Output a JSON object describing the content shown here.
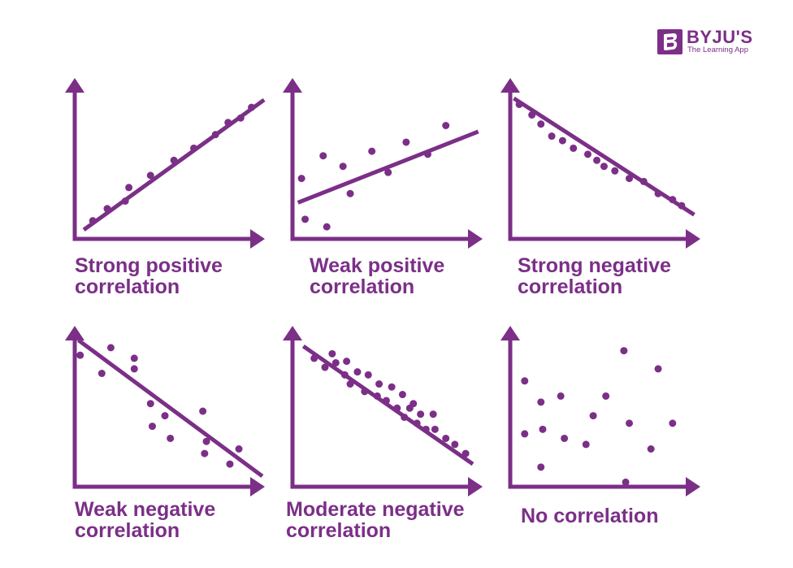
{
  "brand": {
    "name": "BYJU'S",
    "tagline": "The Learning App",
    "color": "#7b2f87"
  },
  "panels": [
    {
      "id": "strong-positive",
      "caption": [
        "Strong positive",
        "correlation"
      ],
      "relationship": "strong positive",
      "points": [
        [
          0.1,
          0.12
        ],
        [
          0.18,
          0.2
        ],
        [
          0.28,
          0.25
        ],
        [
          0.3,
          0.34
        ],
        [
          0.42,
          0.42
        ],
        [
          0.55,
          0.52
        ],
        [
          0.66,
          0.6
        ],
        [
          0.78,
          0.69
        ],
        [
          0.85,
          0.77
        ],
        [
          0.92,
          0.8
        ],
        [
          0.98,
          0.87
        ]
      ],
      "trend": [
        [
          0.05,
          0.06
        ],
        [
          1.05,
          0.92
        ]
      ]
    },
    {
      "id": "weak-positive",
      "caption": [
        "Weak positive",
        "correlation"
      ],
      "relationship": "weak positive",
      "points": [
        [
          0.05,
          0.4
        ],
        [
          0.07,
          0.13
        ],
        [
          0.17,
          0.55
        ],
        [
          0.19,
          0.08
        ],
        [
          0.28,
          0.48
        ],
        [
          0.32,
          0.3
        ],
        [
          0.44,
          0.58
        ],
        [
          0.53,
          0.44
        ],
        [
          0.63,
          0.64
        ],
        [
          0.75,
          0.56
        ],
        [
          0.85,
          0.75
        ]
      ],
      "trend": [
        [
          0.03,
          0.24
        ],
        [
          1.03,
          0.71
        ]
      ]
    },
    {
      "id": "strong-negative",
      "caption": [
        "Strong negative",
        "correlation"
      ],
      "relationship": "strong negative",
      "points": [
        [
          0.05,
          0.89
        ],
        [
          0.12,
          0.82
        ],
        [
          0.17,
          0.76
        ],
        [
          0.23,
          0.68
        ],
        [
          0.29,
          0.65
        ],
        [
          0.35,
          0.6
        ],
        [
          0.43,
          0.56
        ],
        [
          0.48,
          0.52
        ],
        [
          0.52,
          0.48
        ],
        [
          0.58,
          0.45
        ],
        [
          0.66,
          0.4
        ],
        [
          0.74,
          0.38
        ],
        [
          0.82,
          0.3
        ],
        [
          0.9,
          0.26
        ],
        [
          0.95,
          0.22
        ]
      ],
      "trend": [
        [
          0.02,
          0.93
        ],
        [
          1.02,
          0.16
        ]
      ]
    },
    {
      "id": "weak-negative",
      "caption": [
        "Weak negative",
        "correlation"
      ],
      "relationship": "weak negative",
      "points": [
        [
          0.03,
          0.87
        ],
        [
          0.15,
          0.75
        ],
        [
          0.2,
          0.92
        ],
        [
          0.33,
          0.85
        ],
        [
          0.33,
          0.78
        ],
        [
          0.42,
          0.55
        ],
        [
          0.43,
          0.4
        ],
        [
          0.5,
          0.47
        ],
        [
          0.53,
          0.32
        ],
        [
          0.71,
          0.5
        ],
        [
          0.73,
          0.3
        ],
        [
          0.72,
          0.22
        ],
        [
          0.86,
          0.15
        ],
        [
          0.91,
          0.25
        ]
      ],
      "trend": [
        [
          0.02,
          0.97
        ],
        [
          1.04,
          0.07
        ]
      ]
    },
    {
      "id": "moderate-negative",
      "caption": [
        "Moderate negative",
        "correlation"
      ],
      "relationship": "moderate negative",
      "points": [
        [
          0.12,
          0.85
        ],
        [
          0.18,
          0.79
        ],
        [
          0.22,
          0.88
        ],
        [
          0.24,
          0.82
        ],
        [
          0.29,
          0.74
        ],
        [
          0.3,
          0.83
        ],
        [
          0.32,
          0.68
        ],
        [
          0.36,
          0.76
        ],
        [
          0.4,
          0.63
        ],
        [
          0.42,
          0.74
        ],
        [
          0.47,
          0.6
        ],
        [
          0.48,
          0.68
        ],
        [
          0.52,
          0.57
        ],
        [
          0.55,
          0.66
        ],
        [
          0.58,
          0.52
        ],
        [
          0.61,
          0.61
        ],
        [
          0.62,
          0.46
        ],
        [
          0.65,
          0.52
        ],
        [
          0.67,
          0.55
        ],
        [
          0.69,
          0.42
        ],
        [
          0.71,
          0.48
        ],
        [
          0.74,
          0.38
        ],
        [
          0.78,
          0.48
        ],
        [
          0.79,
          0.38
        ],
        [
          0.85,
          0.32
        ],
        [
          0.9,
          0.28
        ],
        [
          0.96,
          0.22
        ]
      ],
      "trend": [
        [
          0.06,
          0.93
        ],
        [
          1.0,
          0.15
        ]
      ]
    },
    {
      "id": "none",
      "caption": [
        "No correlation"
      ],
      "relationship": "none",
      "points": [
        [
          0.08,
          0.7
        ],
        [
          0.08,
          0.35
        ],
        [
          0.17,
          0.56
        ],
        [
          0.17,
          0.13
        ],
        [
          0.18,
          0.38
        ],
        [
          0.28,
          0.6
        ],
        [
          0.3,
          0.32
        ],
        [
          0.42,
          0.28
        ],
        [
          0.46,
          0.47
        ],
        [
          0.53,
          0.6
        ],
        [
          0.63,
          0.9
        ],
        [
          0.66,
          0.42
        ],
        [
          0.78,
          0.25
        ],
        [
          0.82,
          0.78
        ],
        [
          0.9,
          0.42
        ],
        [
          0.64,
          0.03
        ]
      ],
      "trend": null
    }
  ]
}
